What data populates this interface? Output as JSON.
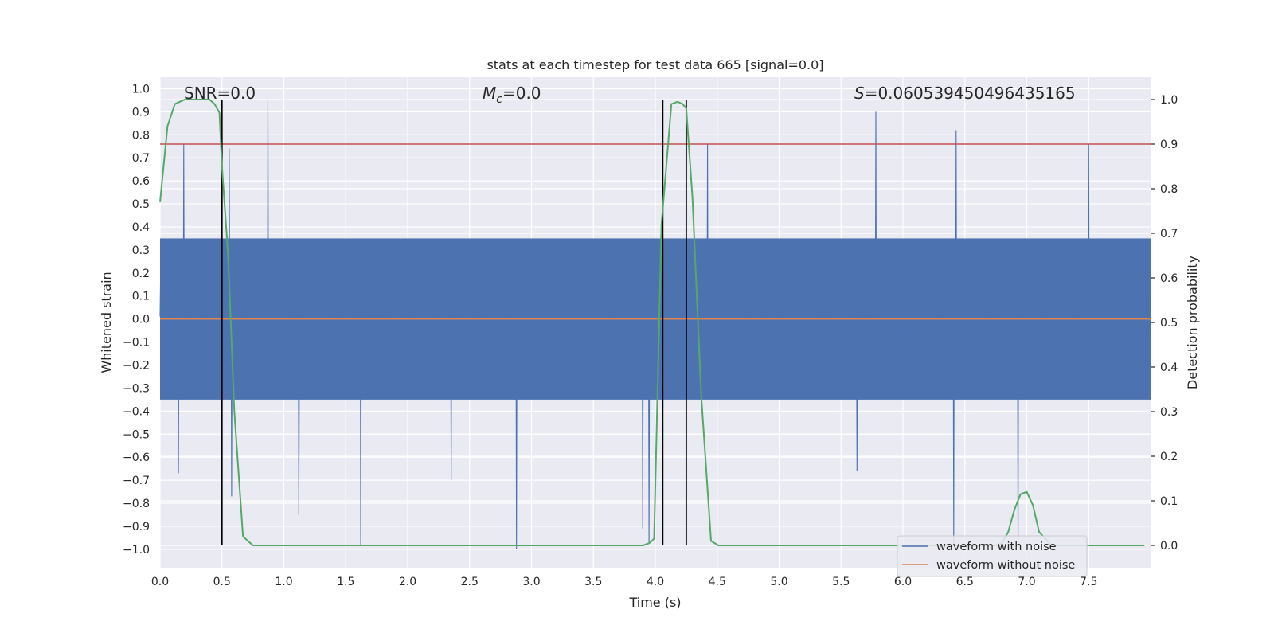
{
  "chart_data": {
    "type": "line",
    "title": "stats at each timestep for test data 665 [signal=0.0]",
    "xlabel": "Time (s)",
    "ylabel": "Whitened strain",
    "ylabel_right": "Detection probability",
    "xlim": [
      0.0,
      8.0
    ],
    "ylim": [
      -1.08,
      1.05
    ],
    "ylim_right": [
      -0.05,
      1.05
    ],
    "x_ticks": [
      0.0,
      0.5,
      1.0,
      1.5,
      2.0,
      2.5,
      3.0,
      3.5,
      4.0,
      4.5,
      5.0,
      5.5,
      6.0,
      6.5,
      7.0,
      7.5
    ],
    "x_tick_labels": [
      "0.0",
      "0.5",
      "1.0",
      "1.5",
      "2.0",
      "2.5",
      "3.0",
      "3.5",
      "4.0",
      "4.5",
      "5.0",
      "5.5",
      "6.0",
      "6.5",
      "7.0",
      "7.5"
    ],
    "y_ticks": [
      -1.0,
      -0.9,
      -0.8,
      -0.7,
      -0.6,
      -0.5,
      -0.4,
      -0.3,
      -0.2,
      -0.1,
      0.0,
      0.1,
      0.2,
      0.3,
      0.4,
      0.5,
      0.6,
      0.7,
      0.8,
      0.9,
      1.0
    ],
    "y_tick_labels": [
      "−1.0",
      "−0.9",
      "−0.8",
      "−0.7",
      "−0.6",
      "−0.5",
      "−0.4",
      "−0.3",
      "−0.2",
      "−0.1",
      "0.0",
      "0.1",
      "0.2",
      "0.3",
      "0.4",
      "0.5",
      "0.6",
      "0.7",
      "0.8",
      "0.9",
      "1.0"
    ],
    "y_right_ticks": [
      0.0,
      0.1,
      0.2,
      0.3,
      0.4,
      0.5,
      0.6,
      0.7,
      0.8,
      0.9,
      1.0
    ],
    "y_right_tick_labels": [
      "0.0",
      "0.1",
      "0.2",
      "0.3",
      "0.4",
      "0.5",
      "0.6",
      "0.7",
      "0.8",
      "0.9",
      "1.0"
    ],
    "grid": true,
    "annotations": {
      "snr": "SNR=0.0",
      "mc_symbol": "M",
      "mc_sub": "c",
      "mc_value": "=0.0",
      "s_symbol": "S",
      "s_value": "=0.060539450496435165"
    },
    "series": [
      {
        "name": "waveform with noise",
        "color": "#4c72b0",
        "kind": "noise",
        "n_samples": 2048,
        "envelope_abs": 0.35,
        "peaks": [
          {
            "x": 0.87,
            "y": 0.95
          },
          {
            "x": 0.19,
            "y": 0.76
          },
          {
            "x": 0.56,
            "y": 0.74
          },
          {
            "x": 4.42,
            "y": 0.76
          },
          {
            "x": 5.78,
            "y": 0.9
          },
          {
            "x": 6.43,
            "y": 0.82
          },
          {
            "x": 7.5,
            "y": 0.76
          },
          {
            "x": 0.58,
            "y": -0.77
          },
          {
            "x": 1.12,
            "y": -0.85
          },
          {
            "x": 1.62,
            "y": -0.98
          },
          {
            "x": 2.88,
            "y": -1.0
          },
          {
            "x": 3.9,
            "y": -0.91
          },
          {
            "x": 3.95,
            "y": -0.97
          },
          {
            "x": 6.41,
            "y": -0.98
          },
          {
            "x": 6.93,
            "y": -0.99
          },
          {
            "x": 0.15,
            "y": -0.67
          },
          {
            "x": 2.35,
            "y": -0.7
          },
          {
            "x": 5.63,
            "y": -0.66
          }
        ]
      },
      {
        "name": "waveform without noise",
        "color": "#dd8452",
        "kind": "constant",
        "value": 0.0
      },
      {
        "name": "detection probability",
        "color": "#55a868",
        "kind": "line",
        "axis": "right",
        "x": [
          0.0,
          0.06,
          0.12,
          0.2,
          0.3,
          0.4,
          0.44,
          0.48,
          0.5,
          0.55,
          0.6,
          0.67,
          0.75,
          0.8,
          1.0,
          2.0,
          3.0,
          3.9,
          3.95,
          3.99,
          4.05,
          4.13,
          4.18,
          4.22,
          4.25,
          4.3,
          4.37,
          4.45,
          4.51,
          4.6,
          5.0,
          6.0,
          6.75,
          6.8,
          6.85,
          6.9,
          6.95,
          7.0,
          7.05,
          7.1,
          7.2,
          7.5,
          7.95
        ],
        "y": [
          0.77,
          0.94,
          0.99,
          1.0,
          1.0,
          1.0,
          0.99,
          0.97,
          0.85,
          0.65,
          0.3,
          0.02,
          0.0,
          0.0,
          0.0,
          0.0,
          0.0,
          0.0,
          0.005,
          0.015,
          0.72,
          0.99,
          0.995,
          0.99,
          0.98,
          0.78,
          0.34,
          0.01,
          0.0,
          0.0,
          0.0,
          0.0,
          0.0,
          0.005,
          0.03,
          0.08,
          0.115,
          0.12,
          0.09,
          0.03,
          0.0,
          0.0,
          0.0
        ]
      }
    ],
    "reference_lines": {
      "threshold_right": 0.9,
      "threshold_color": "#c44e52",
      "vertical_x": [
        0.5,
        4.06,
        4.25
      ],
      "vertical_color": "#000000"
    },
    "legend": {
      "placement": "lower-right",
      "entries": [
        "waveform with noise",
        "waveform without noise"
      ]
    },
    "colors": {
      "plot_background": "#eaeaf2",
      "grid": "#ffffff"
    }
  }
}
